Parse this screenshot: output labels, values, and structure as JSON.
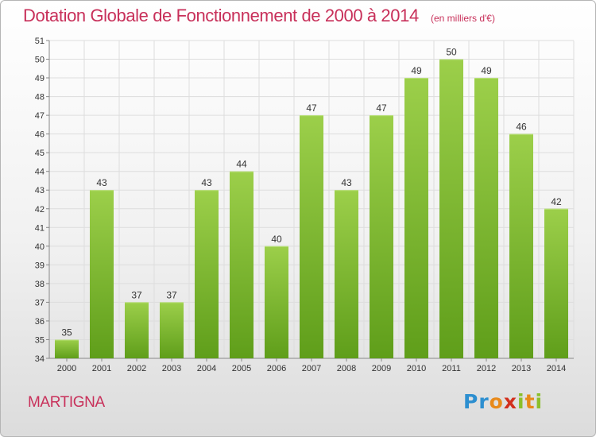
{
  "header": {
    "title": "Dotation Globale de Fonctionnement de 2000 à 2014",
    "unit": "(en milliers d'€)"
  },
  "commune": "MARTIGNA",
  "logo": {
    "letters": [
      "P",
      "r",
      "o",
      "x",
      "i",
      "t",
      "i"
    ],
    "colors": [
      "#2d8fd0",
      "#2d8fd0",
      "#e88a1a",
      "#d22f1d",
      "#8bbf2a",
      "#e88a1a",
      "#8bbf2a"
    ]
  },
  "colors": {
    "title": "#c8305a",
    "bar_light": "#9ccf4a",
    "bar_dark": "#5f9e1a",
    "grid": "#dddddd"
  },
  "chart_data": {
    "type": "bar",
    "title": "Dotation Globale de Fonctionnement de 2000 à 2014",
    "subtitle": "(en milliers d'€)",
    "xlabel": "",
    "ylabel": "",
    "ylim": [
      34,
      51
    ],
    "yticks": [
      34,
      35,
      36,
      37,
      38,
      39,
      40,
      41,
      42,
      43,
      44,
      45,
      46,
      47,
      48,
      49,
      50,
      51
    ],
    "grid": true,
    "categories": [
      "2000",
      "2001",
      "2002",
      "2003",
      "2004",
      "2005",
      "2006",
      "2007",
      "2008",
      "2009",
      "2010",
      "2011",
      "2012",
      "2013",
      "2014"
    ],
    "values": [
      35,
      43,
      37,
      37,
      43,
      44,
      40,
      47,
      43,
      47,
      49,
      50,
      49,
      46,
      42
    ]
  }
}
